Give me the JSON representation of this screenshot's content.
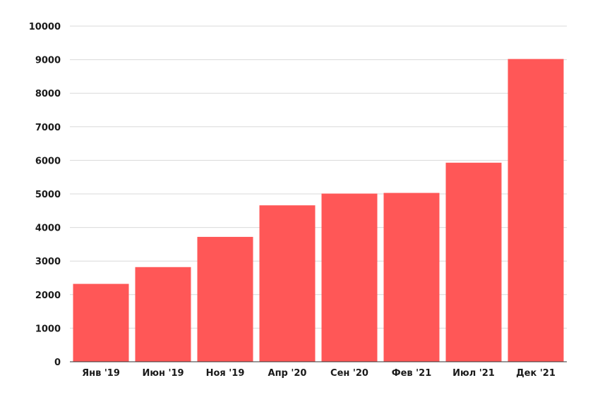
{
  "chart_data": {
    "type": "bar",
    "categories": [
      "Янв '19",
      "Июн '19",
      "Ноя '19",
      "Апр '20",
      "Сен '20",
      "Фев '21",
      "Июл '21",
      "Дек '21"
    ],
    "values": [
      2320,
      2820,
      3720,
      4660,
      5010,
      5030,
      5930,
      9020
    ],
    "title": "",
    "xlabel": "",
    "ylabel": "",
    "ylim": [
      0,
      10000
    ],
    "yticks": [
      0,
      1000,
      2000,
      3000,
      4000,
      5000,
      6000,
      7000,
      8000,
      9000,
      10000
    ],
    "grid": true,
    "bar_color": "#ff5757"
  }
}
